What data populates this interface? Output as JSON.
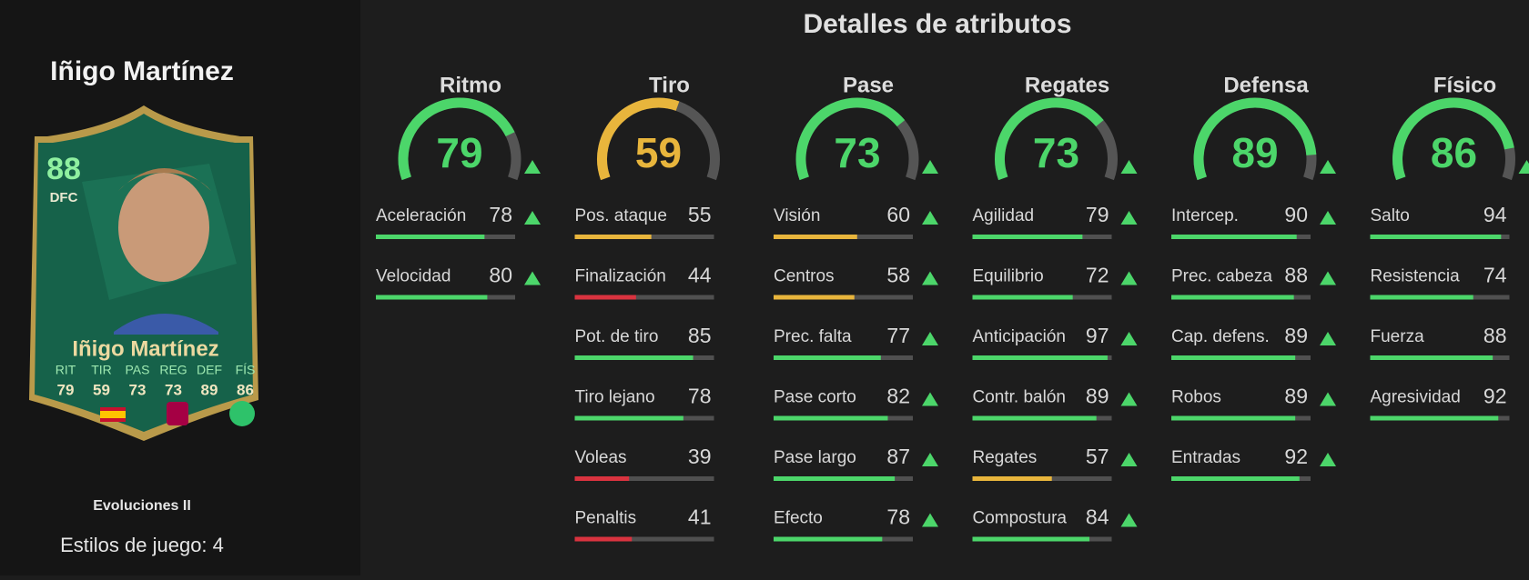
{
  "player_name": "Iñigo Martínez",
  "card": {
    "rating": 88,
    "position": "DFC",
    "name": "Iñigo Martínez",
    "stats": [
      {
        "label": "RIT",
        "value": 79
      },
      {
        "label": "TIR",
        "value": 59
      },
      {
        "label": "PAS",
        "value": 73
      },
      {
        "label": "REG",
        "value": 73
      },
      {
        "label": "DEF",
        "value": 89
      },
      {
        "label": "FÍS",
        "value": 86
      }
    ]
  },
  "card_version": "Evoluciones II",
  "playstyles": "Estilos de juego: 4",
  "title": "Detalles de atributos",
  "categories": [
    {
      "name": "Ritmo",
      "value": 79,
      "upgraded": true,
      "attributes": [
        {
          "name": "Aceleración",
          "value": 78,
          "upgraded": true
        },
        {
          "name": "Velocidad",
          "value": 80,
          "upgraded": true
        }
      ]
    },
    {
      "name": "Tiro",
      "value": 59,
      "upgraded": false,
      "attributes": [
        {
          "name": "Pos. ataque",
          "value": 55,
          "upgraded": false
        },
        {
          "name": "Finalización",
          "value": 44,
          "upgraded": false
        },
        {
          "name": "Pot. de tiro",
          "value": 85,
          "upgraded": false
        },
        {
          "name": "Tiro lejano",
          "value": 78,
          "upgraded": false
        },
        {
          "name": "Voleas",
          "value": 39,
          "upgraded": false
        },
        {
          "name": "Penaltis",
          "value": 41,
          "upgraded": false
        }
      ]
    },
    {
      "name": "Pase",
      "value": 73,
      "upgraded": true,
      "attributes": [
        {
          "name": "Visión",
          "value": 60,
          "upgraded": true
        },
        {
          "name": "Centros",
          "value": 58,
          "upgraded": true
        },
        {
          "name": "Prec. falta",
          "value": 77,
          "upgraded": true
        },
        {
          "name": "Pase corto",
          "value": 82,
          "upgraded": true
        },
        {
          "name": "Pase largo",
          "value": 87,
          "upgraded": true
        },
        {
          "name": "Efecto",
          "value": 78,
          "upgraded": true
        }
      ]
    },
    {
      "name": "Regates",
      "value": 73,
      "upgraded": true,
      "attributes": [
        {
          "name": "Agilidad",
          "value": 79,
          "upgraded": true
        },
        {
          "name": "Equilibrio",
          "value": 72,
          "upgraded": true
        },
        {
          "name": "Anticipación",
          "value": 97,
          "upgraded": true
        },
        {
          "name": "Contr. balón",
          "value": 89,
          "upgraded": true
        },
        {
          "name": "Regates",
          "value": 57,
          "upgraded": true
        },
        {
          "name": "Compostura",
          "value": 84,
          "upgraded": true
        }
      ]
    },
    {
      "name": "Defensa",
      "value": 89,
      "upgraded": true,
      "attributes": [
        {
          "name": "Intercep.",
          "value": 90,
          "upgraded": true
        },
        {
          "name": "Prec. cabeza",
          "value": 88,
          "upgraded": true
        },
        {
          "name": "Cap. defens.",
          "value": 89,
          "upgraded": true
        },
        {
          "name": "Robos",
          "value": 89,
          "upgraded": true
        },
        {
          "name": "Entradas",
          "value": 92,
          "upgraded": true
        }
      ]
    },
    {
      "name": "Físico",
      "value": 86,
      "upgraded": true,
      "attributes": [
        {
          "name": "Salto",
          "value": 94,
          "upgraded": false
        },
        {
          "name": "Resistencia",
          "value": 74,
          "upgraded": false
        },
        {
          "name": "Fuerza",
          "value": 88,
          "upgraded": false
        },
        {
          "name": "Agresividad",
          "value": 92,
          "upgraded": false
        }
      ]
    }
  ]
}
